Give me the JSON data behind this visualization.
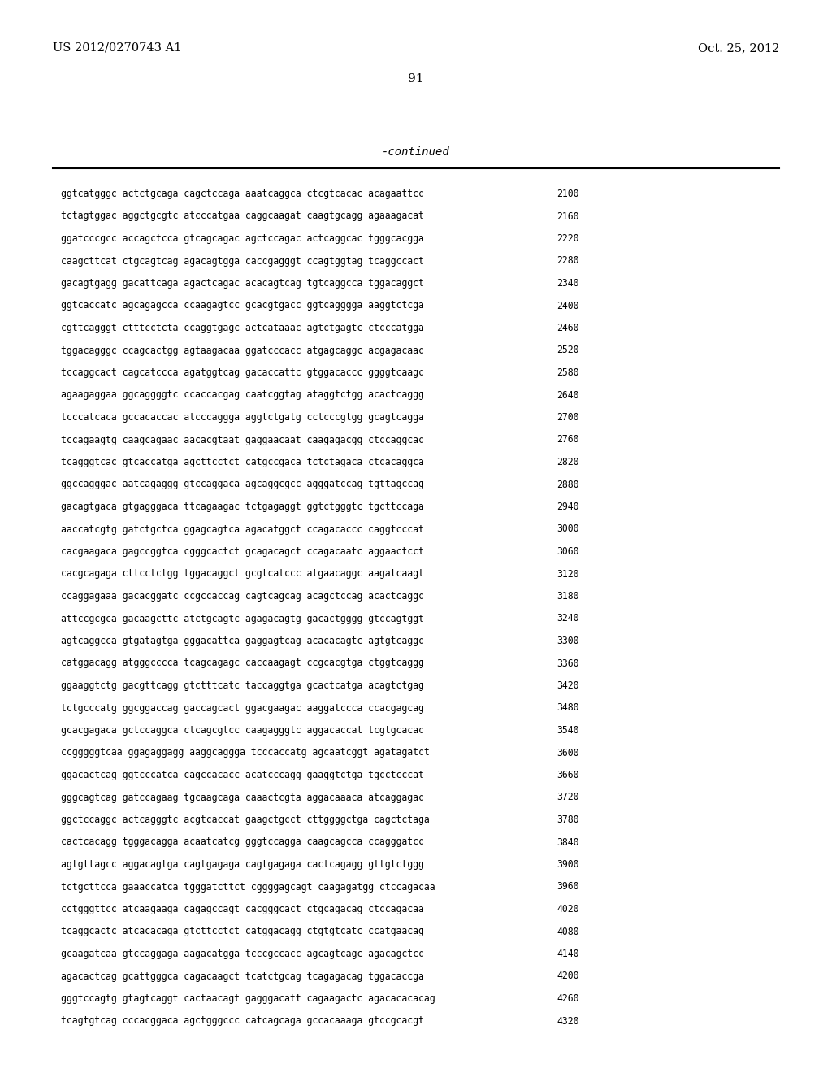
{
  "header_left": "US 2012/0270743 A1",
  "header_right": "Oct. 25, 2012",
  "page_number": "91",
  "continued_label": "-continued",
  "background_color": "#ffffff",
  "text_color": "#000000",
  "lines": [
    {
      "seq": "ggtcatgggc actctgcaga cagctccaga aaatcaggca ctcgtcacac acagaattcc",
      "num": "2100"
    },
    {
      "seq": "tctagtggac aggctgcgtc atcccatgaa caggcaagat caagtgcagg agaaagacat",
      "num": "2160"
    },
    {
      "seq": "ggatcccgcc accagctcca gtcagcagac agctccagac actcaggcac tgggcacgga",
      "num": "2220"
    },
    {
      "seq": "caagcttcat ctgcagtcag agacagtgga caccgagggt ccagtggtag tcaggccact",
      "num": "2280"
    },
    {
      "seq": "gacagtgagg gacattcaga agactcagac acacagtcag tgtcaggcca tggacaggct",
      "num": "2340"
    },
    {
      "seq": "ggtcaccatc agcagagcca ccaagagtcc gcacgtgacc ggtcagggga aaggtctcga",
      "num": "2400"
    },
    {
      "seq": "cgttcagggt ctttcctcta ccaggtgagc actcataaac agtctgagtc ctcccatgga",
      "num": "2460"
    },
    {
      "seq": "tggacagggc ccagcactgg agtaagacaa ggatcccacc atgagcaggc acgagacaac",
      "num": "2520"
    },
    {
      "seq": "tccaggcact cagcatccca agatggtcag gacaccattc gtggacaccc ggggtcaagc",
      "num": "2580"
    },
    {
      "seq": "agaagaggaa ggcaggggtc ccaccacgag caatcggtag ataggtctgg acactcaggg",
      "num": "2640"
    },
    {
      "seq": "tcccatcaca gccacaccac atcccaggga aggtctgatg cctcccgtgg gcagtcagga",
      "num": "2700"
    },
    {
      "seq": "tccagaagtg caagcagaac aacacgtaat gaggaacaat caagagacgg ctccaggcac",
      "num": "2760"
    },
    {
      "seq": "tcagggtcac gtcaccatga agcttcctct catgccgaca tctctagaca ctcacaggca",
      "num": "2820"
    },
    {
      "seq": "ggccagggac aatcagaggg gtccaggaca agcaggcgcc agggatccag tgttagccag",
      "num": "2880"
    },
    {
      "seq": "gacagtgaca gtgagggaca ttcagaagac tctgagaggt ggtctgggtc tgcttccaga",
      "num": "2940"
    },
    {
      "seq": "aaccatcgtg gatctgctca ggagcagtca agacatggct ccagacaccc caggtcccat",
      "num": "3000"
    },
    {
      "seq": "cacgaagaca gagccggtca cgggcactct gcagacagct ccagacaatc aggaactcct",
      "num": "3060"
    },
    {
      "seq": "cacgcagaga cttcctctgg tggacaggct gcgtcatccc atgaacaggc aagatcaagt",
      "num": "3120"
    },
    {
      "seq": "ccaggagaaa gacacggatc ccgccaccag cagtcagcag acagctccag acactcaggc",
      "num": "3180"
    },
    {
      "seq": "attccgcgca gacaagcttc atctgcagtc agagacagtg gacactgggg gtccagtggt",
      "num": "3240"
    },
    {
      "seq": "agtcaggcca gtgatagtga gggacattca gaggagtcag acacacagtc agtgtcaggc",
      "num": "3300"
    },
    {
      "seq": "catggacagg atgggcccca tcagcagagc caccaagagt ccgcacgtga ctggtcaggg",
      "num": "3360"
    },
    {
      "seq": "ggaaggtctg gacgttcagg gtctttcatc taccaggtga gcactcatga acagtctgag",
      "num": "3420"
    },
    {
      "seq": "tctgcccatg ggcggaccag gaccagcact ggacgaagac aaggatccca ccacgagcag",
      "num": "3480"
    },
    {
      "seq": "gcacgagaca gctccaggca ctcagcgtcc caagagggtc aggacaccat tcgtgcacac",
      "num": "3540"
    },
    {
      "seq": "ccgggggtcaa ggagaggagg aaggcaggga tcccaccatg agcaatcggt agatagatct",
      "num": "3600"
    },
    {
      "seq": "ggacactcag ggtcccatca cagccacacc acatcccagg gaaggtctga tgcctcccat",
      "num": "3660"
    },
    {
      "seq": "gggcagtcag gatccagaag tgcaagcaga caaactcgta aggacaaaca atcaggagac",
      "num": "3720"
    },
    {
      "seq": "ggctccaggc actcagggtc acgtcaccat gaagctgcct cttggggctga cagctctaga",
      "num": "3780"
    },
    {
      "seq": "cactcacagg tgggacagga acaatcatcg gggtccagga caagcagcca ccagggatcc",
      "num": "3840"
    },
    {
      "seq": "agtgttagcc aggacagtga cagtgagaga cagtgagaga cactcagagg gttgtctggg",
      "num": "3900"
    },
    {
      "seq": "tctgcttcca gaaaccatca tgggatcttct cggggagcagt caagagatgg ctccagacaa",
      "num": "3960"
    },
    {
      "seq": "cctgggttcc atcaagaaga cagagccagt cacgggcact ctgcagacag ctccagacaa",
      "num": "4020"
    },
    {
      "seq": "tcaggcactc atcacacaga gtcttcctct catggacagg ctgtgtcatc ccatgaacag",
      "num": "4080"
    },
    {
      "seq": "gcaagatcaa gtccaggaga aagacatgga tcccgccacc agcagtcagc agacagctcc",
      "num": "4140"
    },
    {
      "seq": "agacactcag gcattgggca cagacaagct tcatctgcag tcagagacag tggacaccga",
      "num": "4200"
    },
    {
      "seq": "gggtccagtg gtagtcaggt cactaacagt gagggacatt cagaagactc agacacacacag",
      "num": "4260"
    },
    {
      "seq": "tcagtgtcag cccacggaca agctgggccc catcagcaga gccacaaaga gtccgcacgt",
      "num": "4320"
    }
  ]
}
